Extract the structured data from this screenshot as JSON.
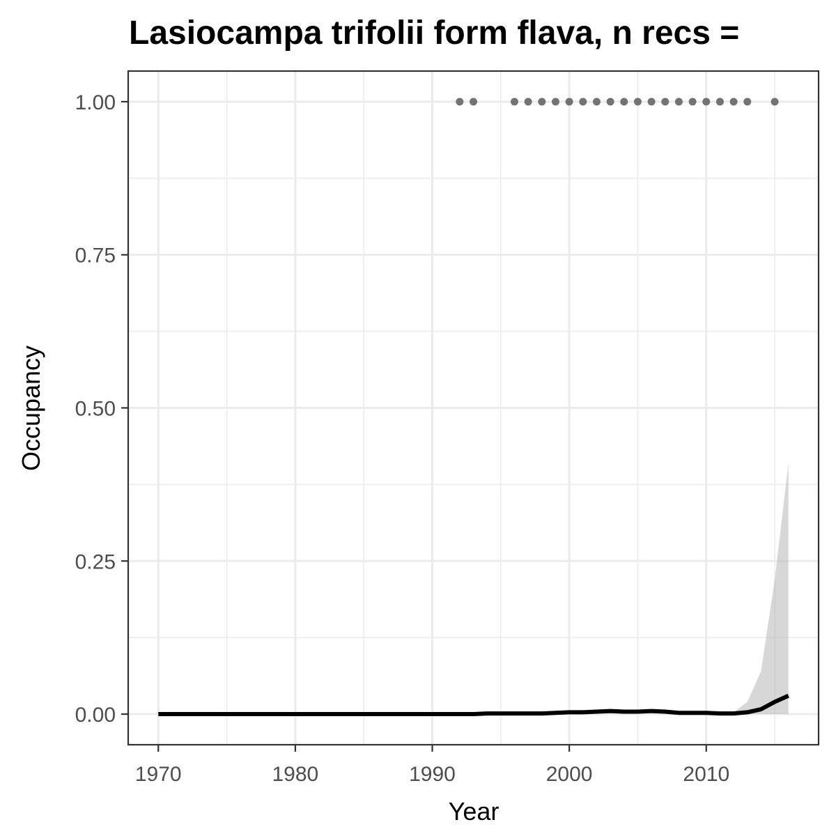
{
  "chart_data": {
    "type": "line",
    "title": "Lasiocampa trifolii form flava, n recs =",
    "xlabel": "Year",
    "ylabel": "Occupancy",
    "xlim": [
      1967.8,
      2018.2
    ],
    "ylim": [
      -0.05,
      1.05
    ],
    "x_ticks": [
      1970,
      1980,
      1990,
      2000,
      2010
    ],
    "y_ticks": [
      0.0,
      0.25,
      0.5,
      0.75,
      1.0
    ],
    "y_tick_labels": [
      "0.00",
      "0.25",
      "0.50",
      "0.75",
      "1.00"
    ],
    "x_minor_ticks": [
      1975,
      1985,
      1995,
      2005,
      2015
    ],
    "y_minor_ticks": [
      0.125,
      0.375,
      0.625,
      0.875
    ],
    "grid": true,
    "legend": "none",
    "colors": {
      "line": "#000000",
      "ribbon": "#bfbfbf",
      "points": "#737373",
      "grid": "#ebebeb",
      "panel_border": "#333333"
    },
    "series": [
      {
        "type": "line",
        "x": [
          1970,
          1971,
          1972,
          1973,
          1974,
          1975,
          1976,
          1977,
          1978,
          1979,
          1980,
          1981,
          1982,
          1983,
          1984,
          1985,
          1986,
          1987,
          1988,
          1989,
          1990,
          1991,
          1992,
          1993,
          1994,
          1995,
          1996,
          1997,
          1998,
          1999,
          2000,
          2001,
          2002,
          2003,
          2004,
          2005,
          2006,
          2007,
          2008,
          2009,
          2010,
          2011,
          2012,
          2013,
          2014,
          2015,
          2016
        ],
        "y": [
          0,
          0,
          0,
          0,
          0,
          0,
          0,
          0,
          0,
          0,
          0,
          0,
          0,
          0,
          0,
          0,
          0,
          0,
          0,
          0,
          0,
          0,
          0,
          0,
          0.001,
          0.001,
          0.001,
          0.001,
          0.001,
          0.002,
          0.003,
          0.003,
          0.004,
          0.005,
          0.004,
          0.004,
          0.005,
          0.004,
          0.002,
          0.002,
          0.002,
          0.001,
          0.001,
          0.003,
          0.008,
          0.02,
          0.03
        ]
      },
      {
        "type": "area",
        "x": [
          2012,
          2013,
          2014,
          2015,
          2016
        ],
        "lower": [
          0,
          0,
          0,
          0,
          0
        ],
        "upper": [
          0.003,
          0.02,
          0.07,
          0.22,
          0.41
        ]
      },
      {
        "type": "scatter",
        "x": [
          1992,
          1993,
          1996,
          1997,
          1998,
          1999,
          2000,
          2001,
          2002,
          2003,
          2004,
          2005,
          2006,
          2007,
          2008,
          2009,
          2010,
          2011,
          2012,
          2013,
          2015
        ],
        "y": [
          1,
          1,
          1,
          1,
          1,
          1,
          1,
          1,
          1,
          1,
          1,
          1,
          1,
          1,
          1,
          1,
          1,
          1,
          1,
          1,
          1
        ]
      }
    ]
  }
}
